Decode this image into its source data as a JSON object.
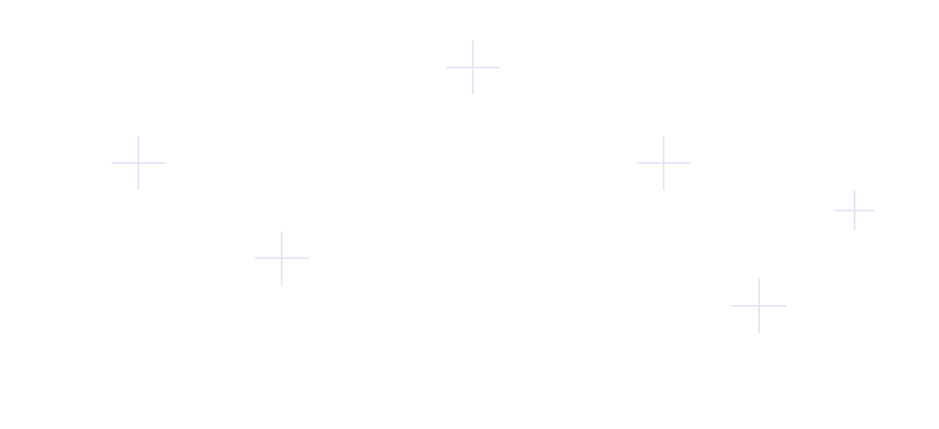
{
  "background_color": "#ffffff",
  "decorations": {
    "icon": "plus-icon",
    "color": "#e2e2fb",
    "count": 6
  }
}
